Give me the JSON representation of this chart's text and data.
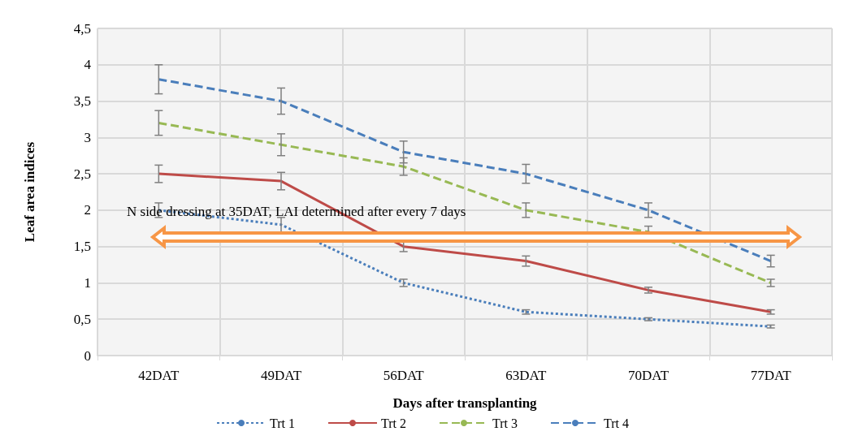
{
  "chart_data": {
    "type": "line",
    "xlabel": "Days after transplanting",
    "ylabel": "Leaf area indices",
    "categories": [
      "42DAT",
      "49DAT",
      "56DAT",
      "63DAT",
      "70DAT",
      "77DAT"
    ],
    "ylim": [
      0,
      4.5
    ],
    "yticks": [
      {
        "value": 0,
        "label": "0"
      },
      {
        "value": 0.5,
        "label": "0,5"
      },
      {
        "value": 1,
        "label": "1"
      },
      {
        "value": 1.5,
        "label": "1,5"
      },
      {
        "value": 2,
        "label": "2"
      },
      {
        "value": 2.5,
        "label": "2,5"
      },
      {
        "value": 3,
        "label": "3"
      },
      {
        "value": 3.5,
        "label": "3,5"
      },
      {
        "value": 4,
        "label": "4"
      },
      {
        "value": 4.5,
        "label": "4,5"
      }
    ],
    "series": [
      {
        "name": "Trt 1",
        "color": "#4a7ebb",
        "line_style": "dotted",
        "values": [
          2.0,
          1.8,
          1.0,
          0.6,
          0.5,
          0.4
        ],
        "errors": [
          0.1,
          0.1,
          0.05,
          0.03,
          0.02,
          0.02
        ]
      },
      {
        "name": "Trt 2",
        "color": "#be4b48",
        "line_style": "solid",
        "values": [
          2.5,
          2.4,
          1.5,
          1.3,
          0.9,
          0.6
        ],
        "errors": [
          0.12,
          0.12,
          0.07,
          0.07,
          0.04,
          0.03
        ]
      },
      {
        "name": "Trt 3",
        "color": "#98b954",
        "line_style": "dashed",
        "values": [
          3.2,
          2.9,
          2.6,
          2.0,
          1.7,
          1.0
        ],
        "errors": [
          0.17,
          0.15,
          0.12,
          0.1,
          0.08,
          0.05
        ]
      },
      {
        "name": "Trt 4",
        "color": "#4a7ebb",
        "line_style": "dashed",
        "values": [
          3.8,
          3.5,
          2.8,
          2.5,
          2.0,
          1.3
        ],
        "errors": [
          0.2,
          0.18,
          0.15,
          0.13,
          0.1,
          0.08
        ]
      }
    ],
    "annotations": [
      "N side dressing at 35DAT, LAI determined after every 7 days"
    ],
    "grid": true,
    "legend": "bottom"
  }
}
